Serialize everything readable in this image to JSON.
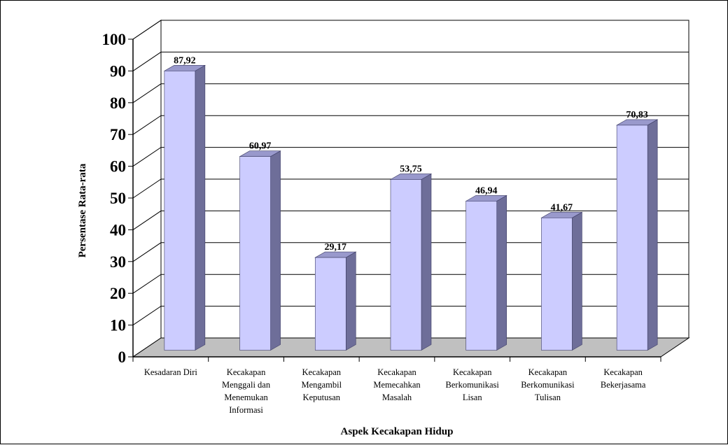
{
  "chart_data": {
    "type": "bar",
    "style": "3d-column",
    "categories": [
      [
        "Kesadaran Diri"
      ],
      [
        "Kecakapan",
        "Menggali dan",
        "Menemukan",
        "Informasi"
      ],
      [
        "Kecakapan",
        "Mengambil",
        "Keputusan"
      ],
      [
        "Kecakapan",
        "Memecahkan",
        "Masalah"
      ],
      [
        "Kecakapan",
        "Berkomunikasi",
        "Lisan"
      ],
      [
        "Kecakapan",
        "Berkomunikasi",
        "Tulisan"
      ],
      [
        "Kecakapan",
        "Bekerjasama"
      ]
    ],
    "values": [
      87.92,
      60.97,
      29.17,
      53.75,
      46.94,
      41.67,
      70.83
    ],
    "data_labels": [
      "87,92",
      "60,97",
      "29,17",
      "53,75",
      "46,94",
      "41,67",
      "70,83"
    ],
    "xlabel": "Aspek Kecakapan Hidup",
    "ylabel": "Persentase Rata-rata",
    "ylim": [
      0,
      100
    ],
    "yticks": [
      0,
      10,
      20,
      30,
      40,
      50,
      60,
      70,
      80,
      90,
      100
    ],
    "grid": true,
    "legend": "none",
    "colors": {
      "bar_front": "#ccccff",
      "bar_side": "#6e6e99",
      "bar_top": "#9999cc",
      "floor": "#c0c0c0",
      "wall": "#ffffff",
      "lines": "#000000"
    }
  }
}
